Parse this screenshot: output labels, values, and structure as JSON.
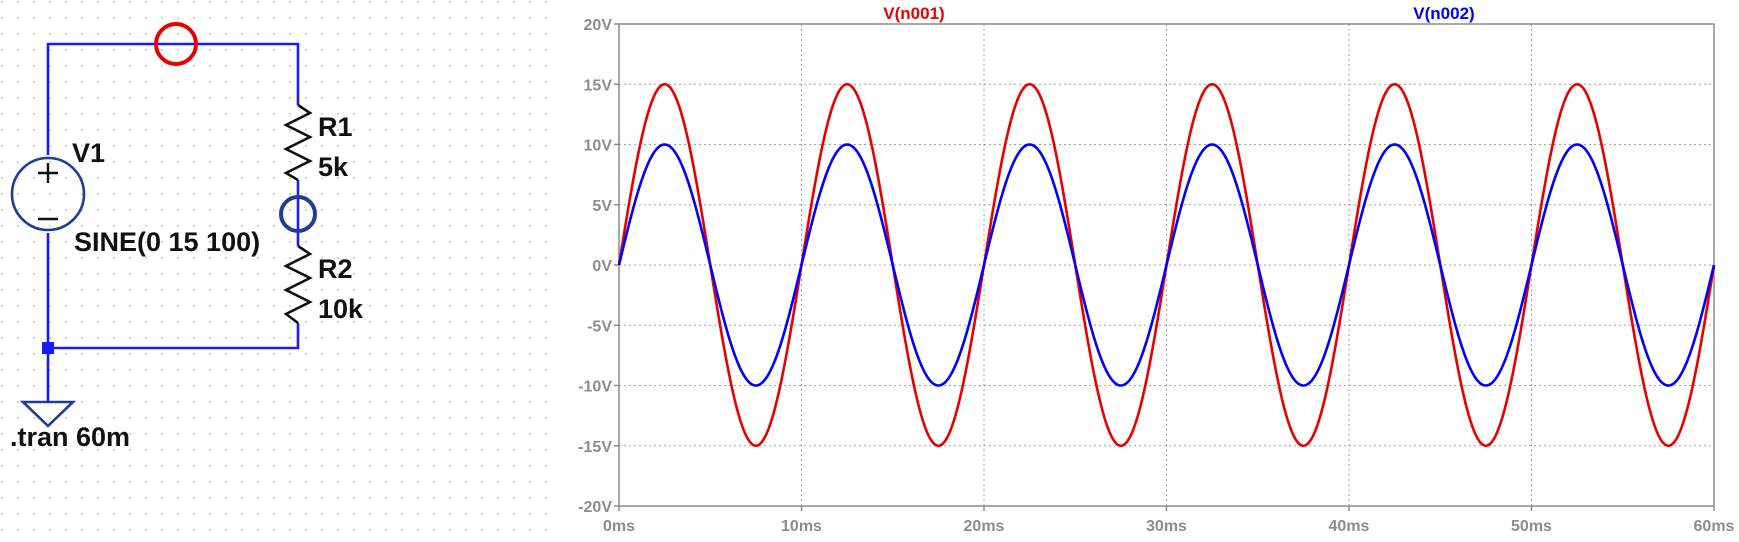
{
  "schematic": {
    "source_name": "V1",
    "source_value": "SINE(0 15 100)",
    "r1_name": "R1",
    "r1_value": "5k",
    "r2_name": "R2",
    "r2_value": "10k",
    "directive": ".tran 60m",
    "wire_color": "#1a1aff",
    "probe1_color": "#e80000",
    "probe2_color": "#1f3e93"
  },
  "chart_data": {
    "type": "line",
    "x_unit": "ms",
    "xlim": [
      0,
      60
    ],
    "ylim": [
      -20,
      20
    ],
    "x_ticks": [
      "0ms",
      "10ms",
      "20ms",
      "30ms",
      "40ms",
      "50ms",
      "60ms"
    ],
    "y_ticks": [
      "20V",
      "15V",
      "10V",
      "5V",
      "0V",
      "-5V",
      "-10V",
      "-15V",
      "-20V"
    ],
    "grid": true,
    "series": [
      {
        "name": "V(n001)",
        "color": "#e80000",
        "amplitude": 15,
        "frequency_hz": 100,
        "offset": 0
      },
      {
        "name": "V(n002)",
        "color": "#0000ff",
        "amplitude": 10,
        "frequency_hz": 100,
        "offset": 0
      }
    ]
  }
}
